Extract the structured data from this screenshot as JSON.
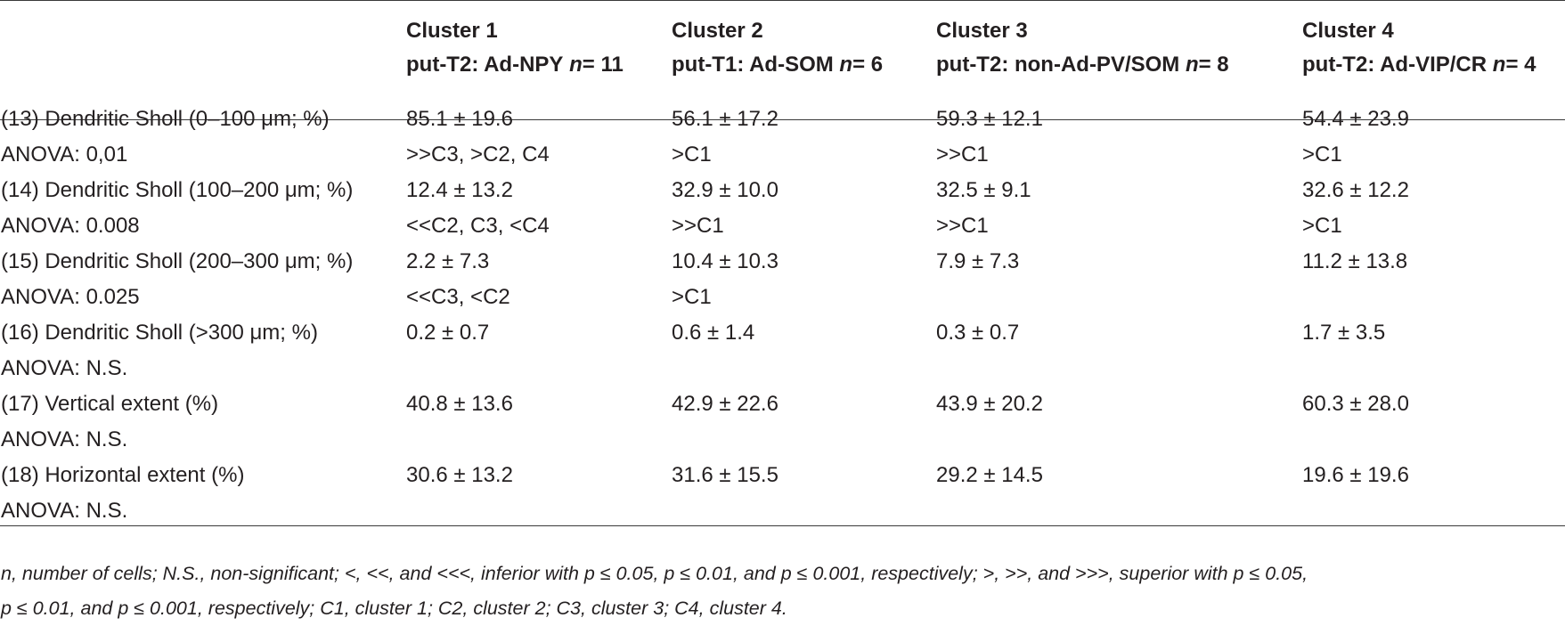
{
  "table": {
    "columns": [
      {
        "title": "Cluster 1",
        "sub": "put-T2: Ad-NPY",
        "n_label": "n",
        "n_value": "= 11"
      },
      {
        "title": "Cluster 2",
        "sub": "put-T1: Ad-SOM",
        "n_label": "n",
        "n_value": "= 6"
      },
      {
        "title": "Cluster 3",
        "sub": "put-T2: non-Ad-PV/SOM",
        "n_label": "n",
        "n_value": "= 8"
      },
      {
        "title": "Cluster 4",
        "sub": "put-T2: Ad-VIP/CR",
        "n_label": "n",
        "n_value": "= 4"
      }
    ],
    "rows": [
      {
        "label": "(13) Dendritic Sholl (0–100 μm; %)",
        "cells": [
          "85.1 ± 19.6",
          "56.1 ± 17.2",
          "59.3 ± 12.1",
          "54.4 ± 23.9"
        ]
      },
      {
        "label": "ANOVA: 0,01",
        "cells": [
          ">>C3, >C2, C4",
          ">C1",
          ">>C1",
          ">C1"
        ]
      },
      {
        "label": "(14) Dendritic Sholl (100–200 μm; %)",
        "cells": [
          "12.4 ± 13.2",
          "32.9 ± 10.0",
          "32.5 ± 9.1",
          "32.6 ± 12.2"
        ]
      },
      {
        "label": "ANOVA: 0.008",
        "cells": [
          "<<C2, C3, <C4",
          ">>C1",
          ">>C1",
          ">C1"
        ]
      },
      {
        "label": "(15) Dendritic Sholl (200–300 μm; %)",
        "cells": [
          "2.2 ± 7.3",
          "10.4 ± 10.3",
          "7.9 ± 7.3",
          "11.2 ± 13.8"
        ]
      },
      {
        "label": "ANOVA: 0.025",
        "cells": [
          "<<C3, <C2",
          ">C1",
          "",
          ""
        ]
      },
      {
        "label": "(16) Dendritic Sholl (>300 μm; %)",
        "cells": [
          "0.2 ± 0.7",
          "0.6 ± 1.4",
          "0.3 ± 0.7",
          "1.7 ± 3.5"
        ]
      },
      {
        "label": "ANOVA: N.S.",
        "cells": [
          "",
          "",
          "",
          ""
        ]
      },
      {
        "label": "(17) Vertical extent (%)",
        "cells": [
          "40.8 ± 13.6",
          "42.9 ± 22.6",
          "43.9 ± 20.2",
          "60.3 ± 28.0"
        ]
      },
      {
        "label": "ANOVA: N.S.",
        "cells": [
          "",
          "",
          "",
          ""
        ]
      },
      {
        "label": "(18) Horizontal extent (%)",
        "cells": [
          "30.6 ± 13.2",
          "31.6 ± 15.5",
          "29.2 ± 14.5",
          "19.6 ± 19.6"
        ]
      },
      {
        "label": "ANOVA: N.S.",
        "cells": [
          "",
          "",
          "",
          ""
        ]
      }
    ]
  },
  "footnote": {
    "line1": "n, number of cells; N.S., non-significant; <, <<, and <<<, inferior with p ≤ 0.05, p ≤ 0.01, and p ≤ 0.001, respectively; >, >>, and >>>, superior with p ≤ 0.05,",
    "line2": "p ≤ 0.01, and p ≤ 0.001, respectively; C1, cluster 1; C2, cluster 2; C3, cluster 3; C4, cluster 4."
  }
}
